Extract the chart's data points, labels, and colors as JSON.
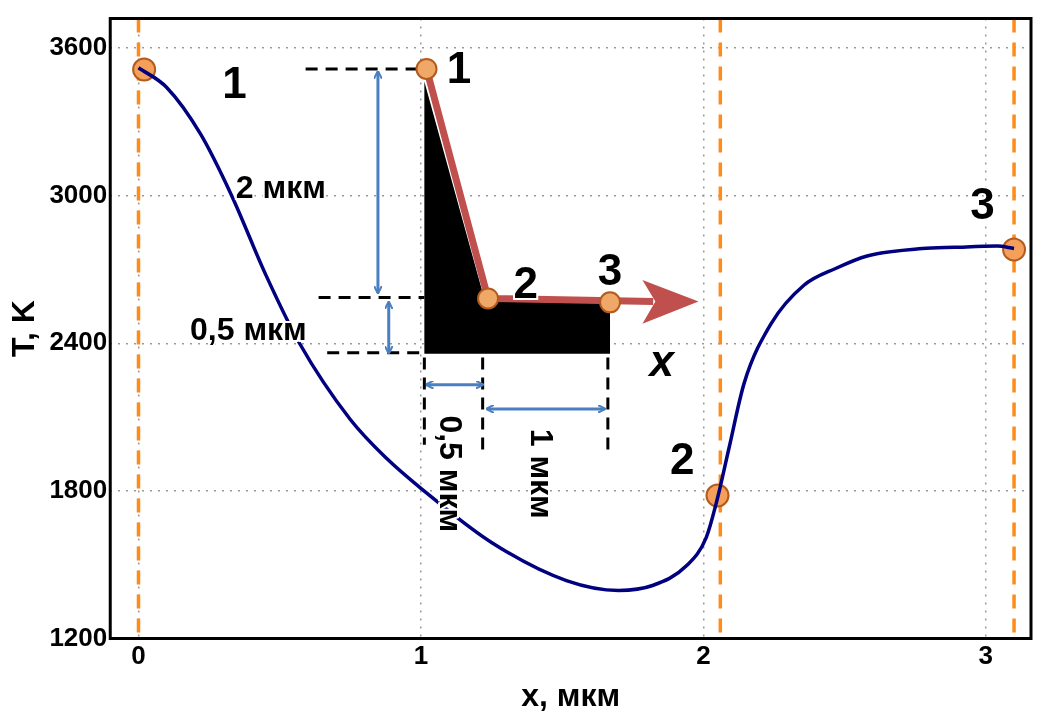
{
  "chart_data": {
    "type": "line",
    "xlabel": "x, мкм",
    "ylabel": "T, K",
    "xlim": [
      -0.1,
      3.16
    ],
    "ylim": [
      1200,
      3720
    ],
    "xticks": [
      0,
      1,
      2,
      3
    ],
    "yticks": [
      1200,
      1800,
      2400,
      3000,
      3600
    ],
    "grid": true,
    "series": [
      {
        "color": "#000080",
        "marker": "none",
        "x": [
          0,
          0.1,
          0.22,
          0.33,
          0.45,
          0.57,
          0.75,
          0.88,
          1,
          1.25,
          1.515,
          1.7,
          1.82,
          1.94,
          2.01,
          2.05,
          2.09,
          2.145,
          2.24,
          2.355,
          2.47,
          2.58,
          2.775,
          2.89,
          3.04,
          3.1
        ],
        "values": [
          3520,
          3440,
          3250,
          3000,
          2680,
          2400,
          2090,
          1930,
          1810,
          1590,
          1435,
          1395,
          1415,
          1495,
          1610,
          1770,
          1970,
          2240,
          2480,
          2635,
          2705,
          2755,
          2785,
          2790,
          2795,
          2785
        ]
      },
      {
        "type": "scatter",
        "color": "#f5a05a",
        "marker": "circle",
        "x": [
          0.02,
          2.05,
          3.1
        ],
        "values": [
          3513,
          1781,
          2781
        ]
      }
    ],
    "ref_lines": [
      {
        "axis": "x",
        "value": 0,
        "color": "#ff8c1a",
        "line_style": "dashed"
      },
      {
        "axis": "x",
        "value": 2.06,
        "color": "#ff8c1a",
        "line_style": "dashed"
      },
      {
        "axis": "x",
        "value": 3.1,
        "color": "#ff8c1a",
        "line_style": "dashed"
      }
    ],
    "annotations": [
      "1",
      "2",
      "3",
      "1",
      "2",
      "3",
      "x",
      "2 мкм",
      "0,5 мкм",
      "0,5 мкм",
      "1 мкм"
    ]
  }
}
